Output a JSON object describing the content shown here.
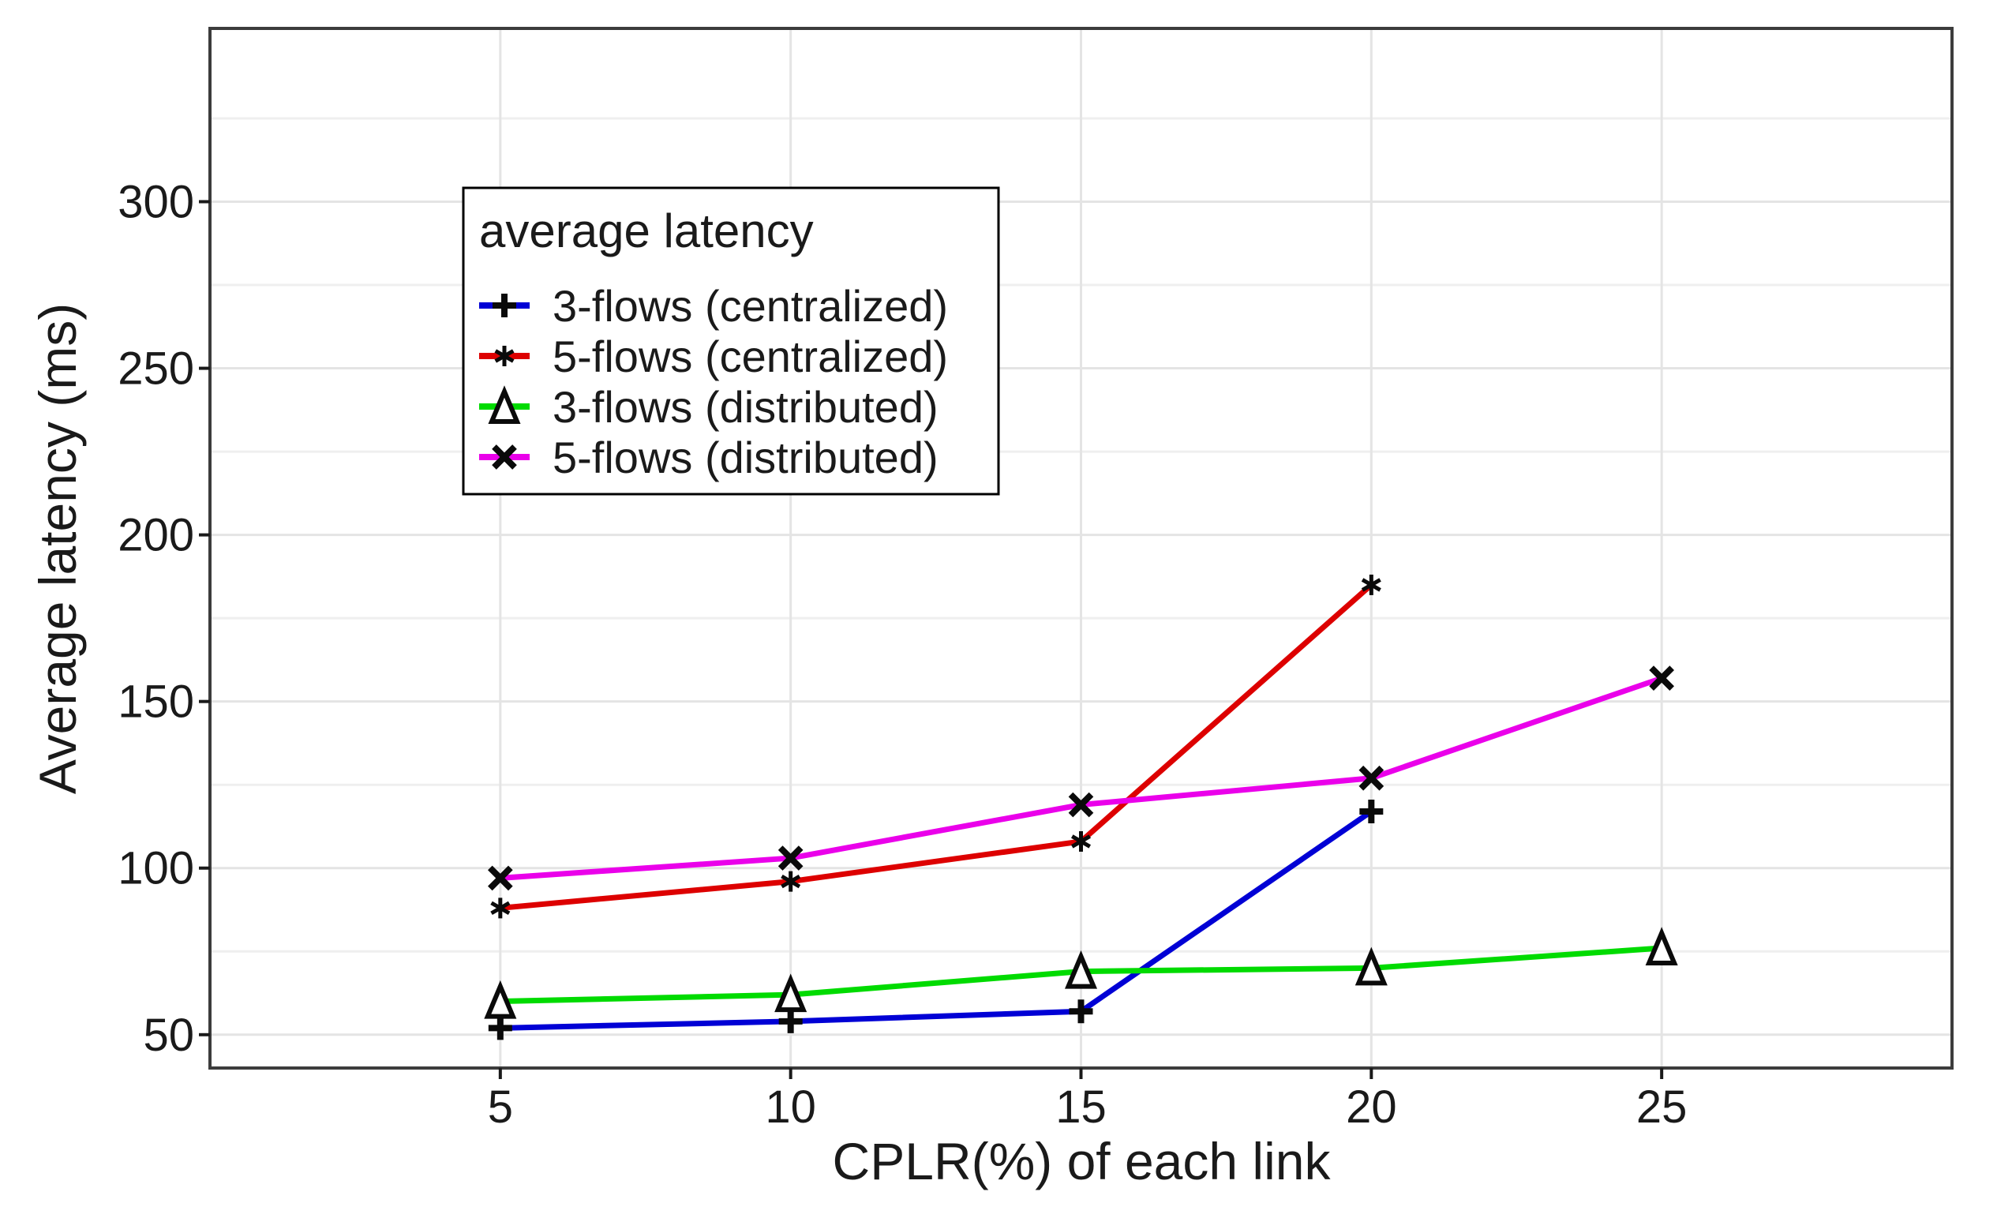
{
  "chart_data": {
    "type": "line",
    "title": "",
    "xlabel": "CPLR(%) of each link",
    "ylabel": "Average latency (ms)",
    "xlim": [
      0,
      30
    ],
    "ylim": [
      40,
      352
    ],
    "x_ticks": [
      5,
      10,
      15,
      20,
      25
    ],
    "y_ticks": [
      50,
      100,
      150,
      200,
      250,
      300
    ],
    "y_minor_gridlines": [
      75,
      125,
      175,
      225,
      275,
      325
    ],
    "grid": "light gray major gridlines at all ticks, minor horizontal gridlines between y ticks, white background, dark panel border",
    "marker_color": "#0a0a0a",
    "series": [
      {
        "name": "3-flows (centralized)",
        "color": "#0000d5",
        "marker": "plus",
        "x": [
          5,
          10,
          15,
          20
        ],
        "y": [
          52,
          54,
          57,
          117
        ]
      },
      {
        "name": "5-flows (centralized)",
        "color": "#dd0000",
        "marker": "asterisk",
        "x": [
          5,
          10,
          15,
          20
        ],
        "y": [
          88,
          96,
          108,
          185
        ]
      },
      {
        "name": "3-flows (distributed)",
        "color": "#00db00",
        "marker": "triangle-open",
        "x": [
          5,
          10,
          15,
          20,
          25
        ],
        "y": [
          60,
          62,
          69,
          70,
          76
        ]
      },
      {
        "name": "5-flows (distributed)",
        "color": "#ea00ea",
        "marker": "x",
        "x": [
          5,
          10,
          15,
          20,
          25
        ],
        "y": [
          97,
          103,
          119,
          127,
          157
        ]
      }
    ],
    "legend": {
      "title": "average latency",
      "position": "inside top-left",
      "entries": [
        "3-flows (centralized)",
        "5-flows (centralized)",
        "3-flows (distributed)",
        "5-flows (distributed)"
      ]
    }
  },
  "styles": {
    "background": "#ffffff",
    "panel_border": "#3c3c3c",
    "grid_major": "#e4e4e4",
    "grid_minor": "#efefef",
    "tick": "#1a1a1a",
    "text": "#1a1a1a",
    "legend_bg": "#ffffff",
    "legend_border": "#000000",
    "triangle_fill": "#ffffff"
  }
}
